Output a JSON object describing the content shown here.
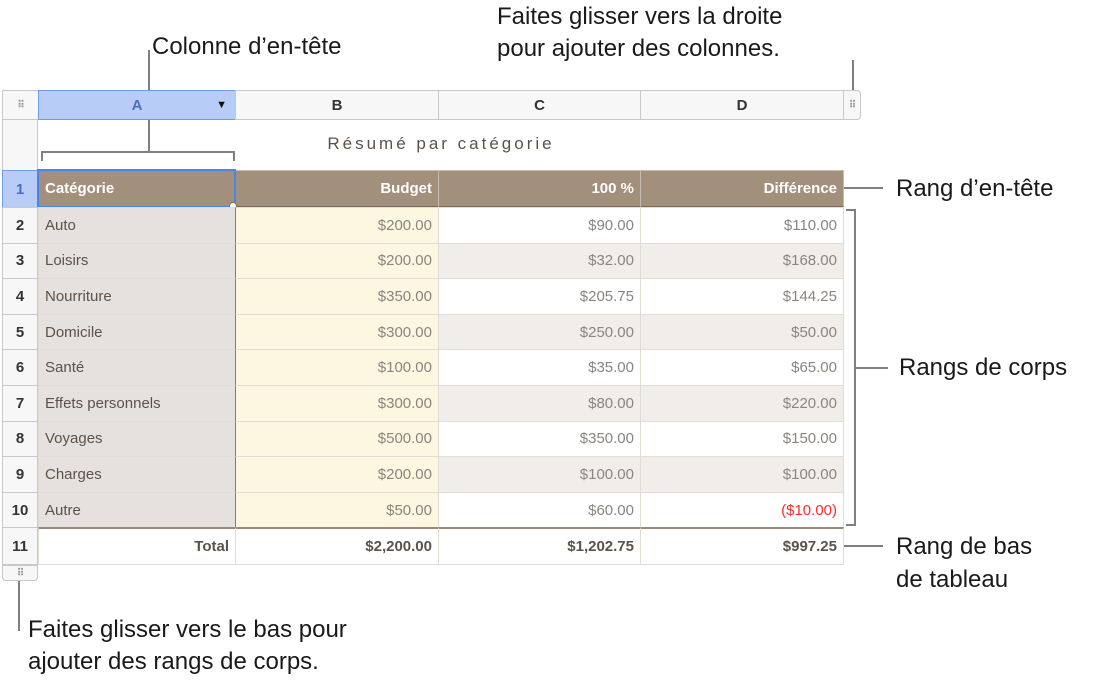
{
  "callouts": {
    "header_column": "Colonne d’en-tête",
    "drag_right_1": "Faites glisser vers la droite",
    "drag_right_2": "pour ajouter des colonnes.",
    "header_row": "Rang d’en-tête",
    "body_rows": "Rangs de corps",
    "footer_row_1": "Rang de bas",
    "footer_row_2": "de tableau",
    "drag_down_1": "Faites glisser vers le bas pour",
    "drag_down_2": "ajouter des rangs de corps."
  },
  "columns": [
    "A",
    "B",
    "C",
    "D"
  ],
  "table_title": "Résumé par catégorie",
  "header_row": [
    "Catégorie",
    "Budget",
    "100 %",
    "Différence"
  ],
  "rows": [
    {
      "num": "2",
      "cells": [
        "Auto",
        "$200.00",
        "$90.00",
        "$110.00"
      ]
    },
    {
      "num": "3",
      "cells": [
        "Loisirs",
        "$200.00",
        "$32.00",
        "$168.00"
      ]
    },
    {
      "num": "4",
      "cells": [
        "Nourriture",
        "$350.00",
        "$205.75",
        "$144.25"
      ]
    },
    {
      "num": "5",
      "cells": [
        "Domicile",
        "$300.00",
        "$250.00",
        "$50.00"
      ]
    },
    {
      "num": "6",
      "cells": [
        "Santé",
        "$100.00",
        "$35.00",
        "$65.00"
      ]
    },
    {
      "num": "7",
      "cells": [
        "Effets personnels",
        "$300.00",
        "$80.00",
        "$220.00"
      ]
    },
    {
      "num": "8",
      "cells": [
        "Voyages",
        "$500.00",
        "$350.00",
        "$150.00"
      ]
    },
    {
      "num": "9",
      "cells": [
        "Charges",
        "$200.00",
        "$100.00",
        "$100.00"
      ]
    },
    {
      "num": "10",
      "cells": [
        "Autre",
        "$50.00",
        "$60.00",
        "($10.00)"
      ]
    }
  ],
  "header_row_num": "1",
  "footer": {
    "num": "11",
    "cells": [
      "Total",
      "$2,200.00",
      "$1,202.75",
      "$997.25"
    ]
  },
  "colors": {
    "header_bg": "#a28f7c",
    "category_bg": "#e5e1de",
    "budget_bg": "#fdf6e0",
    "alt_row_bg": "#f1edea",
    "negative": "#ff2a2a",
    "selection": "#b7cdf7"
  }
}
